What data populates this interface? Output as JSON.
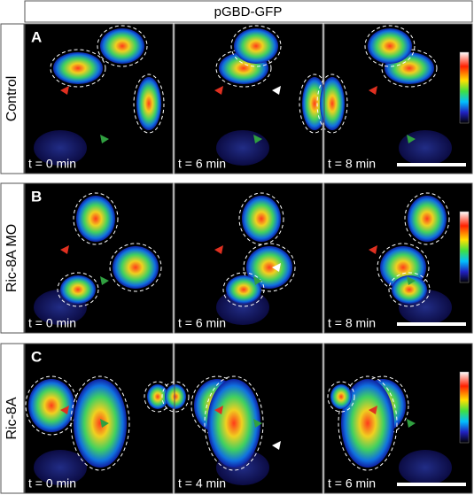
{
  "figure": {
    "title": "pGBD-GFP",
    "rows": [
      {
        "panel": "A",
        "label": "Control",
        "frames": [
          "t = 0 min",
          "t = 6 min",
          "t = 8 min"
        ]
      },
      {
        "panel": "B",
        "label": "Ric-8A MO",
        "frames": [
          "t = 0 min",
          "t = 6 min",
          "t = 8 min"
        ]
      },
      {
        "panel": "C",
        "label": "Ric-8A",
        "frames": [
          "t = 0 min",
          "t = 4 min",
          "t = 6 min"
        ]
      }
    ]
  }
}
